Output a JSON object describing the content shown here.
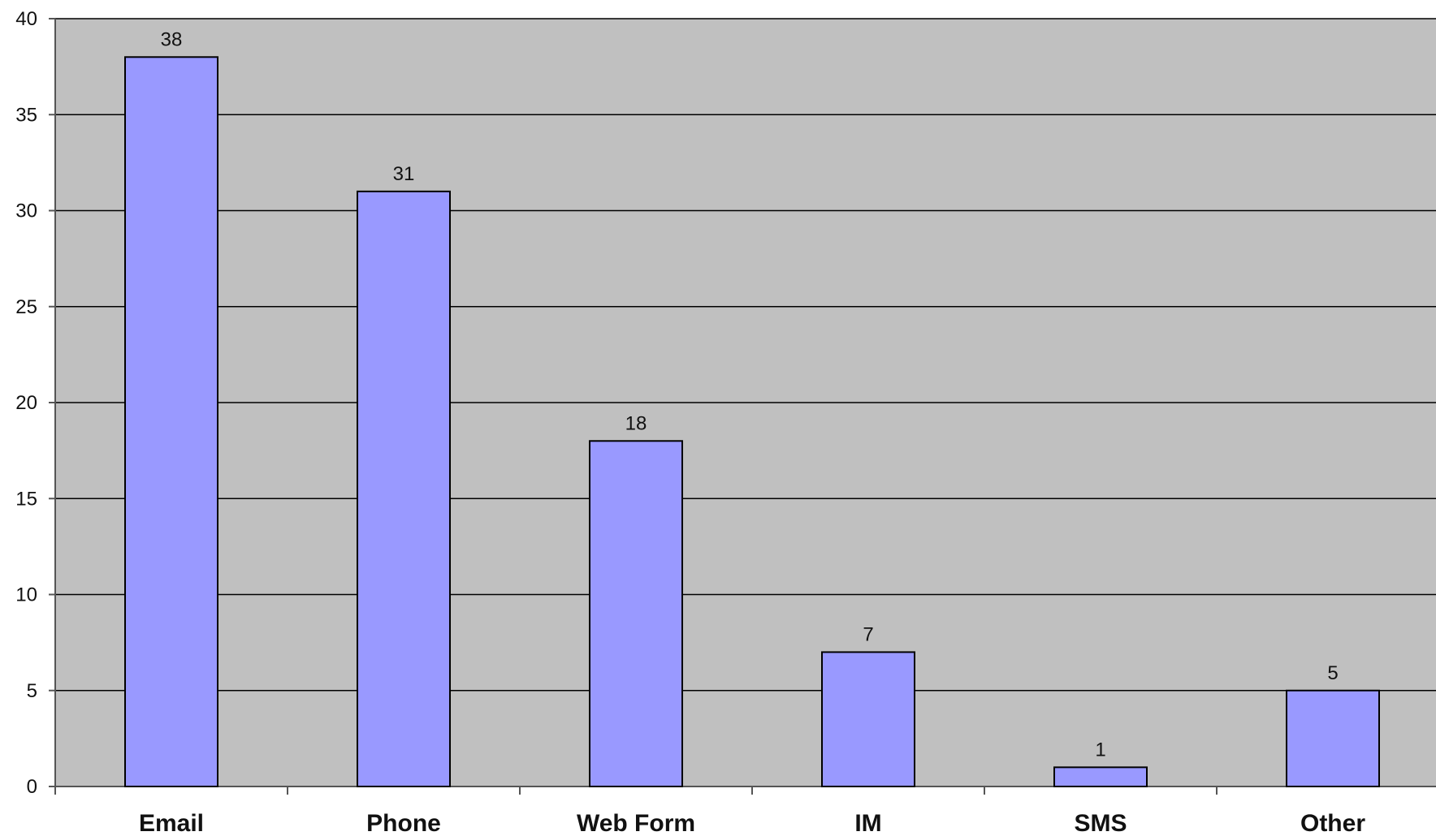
{
  "chart_data": {
    "type": "bar",
    "categories": [
      "Email",
      "Phone",
      "Web Form",
      "IM",
      "SMS",
      "Other"
    ],
    "values": [
      38,
      31,
      18,
      7,
      1,
      5
    ],
    "data_labels": [
      "38",
      "31",
      "18",
      "7",
      "1",
      "5"
    ],
    "title": "",
    "xlabel": "",
    "ylabel": "",
    "ylim": [
      0,
      40
    ],
    "yticks": [
      "0",
      "5",
      "10",
      "15",
      "20",
      "25",
      "30",
      "35",
      "40"
    ],
    "grid": true,
    "legend": "none",
    "colors": {
      "plot_background": "#c0c0c0",
      "bar_fill": "#9999ff",
      "bar_stroke": "#000000",
      "gridline": "#000000"
    }
  }
}
